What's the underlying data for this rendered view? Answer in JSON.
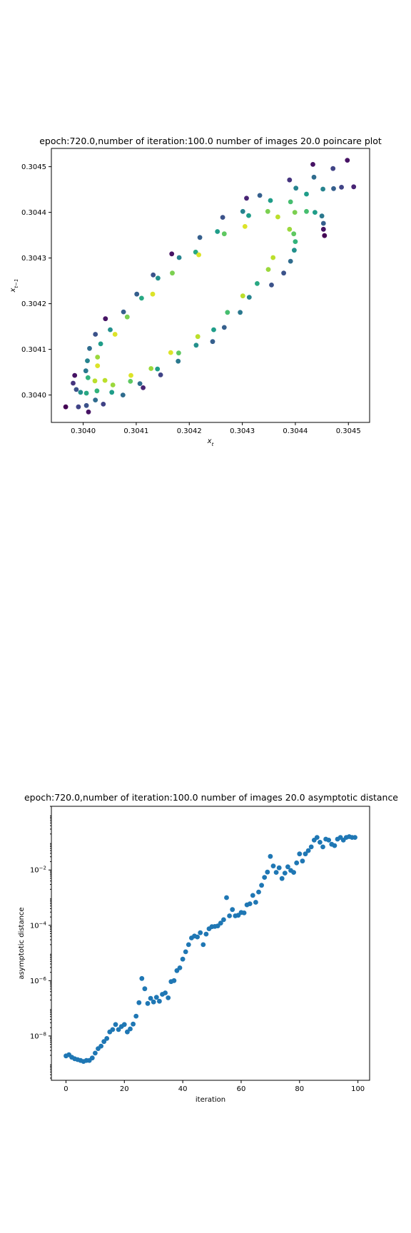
{
  "chart_data": [
    {
      "type": "scatter",
      "title": "epoch:720.0,number of iteration:100.0 number of images 20.0 poincare plot",
      "xlabel": "x_t",
      "ylabel": "x_{t-1}",
      "xlim": [
        0.30394,
        0.30454
      ],
      "ylim": [
        0.30394,
        0.30454
      ],
      "x_ticks": [
        0.304,
        0.3041,
        0.3042,
        0.3043,
        0.3044,
        0.3045
      ],
      "x_tick_labels": [
        "0.3040",
        "0.3041",
        "0.3042",
        "0.3043",
        "0.3044",
        "0.3045"
      ],
      "y_ticks": [
        0.304,
        0.3041,
        0.3042,
        0.3043,
        0.3044,
        0.3045
      ],
      "y_tick_labels": [
        "0.3040",
        "0.3041",
        "0.3042",
        "0.3043",
        "0.3044",
        "0.3045"
      ],
      "colormap": "viridis",
      "grid": false,
      "points": [
        {
          "x": 0.303967,
          "y": 0.303974,
          "c": 0.0
        },
        {
          "x": 0.303984,
          "y": 0.304043,
          "c": 0.05
        },
        {
          "x": 0.303981,
          "y": 0.304026,
          "c": 0.15
        },
        {
          "x": 0.303987,
          "y": 0.304012,
          "c": 0.25
        },
        {
          "x": 0.303991,
          "y": 0.303974,
          "c": 0.2
        },
        {
          "x": 0.303995,
          "y": 0.304006,
          "c": 0.5
        },
        {
          "x": 0.304006,
          "y": 0.303977,
          "c": 0.25
        },
        {
          "x": 0.30401,
          "y": 0.303963,
          "c": 0.05
        },
        {
          "x": 0.304005,
          "y": 0.304053,
          "c": 0.4
        },
        {
          "x": 0.304009,
          "y": 0.304038,
          "c": 0.65
        },
        {
          "x": 0.304008,
          "y": 0.304075,
          "c": 0.45
        },
        {
          "x": 0.304012,
          "y": 0.304102,
          "c": 0.35
        },
        {
          "x": 0.304006,
          "y": 0.304004,
          "c": 0.6
        },
        {
          "x": 0.304022,
          "y": 0.304031,
          "c": 0.9
        },
        {
          "x": 0.304023,
          "y": 0.303989,
          "c": 0.35
        },
        {
          "x": 0.304023,
          "y": 0.304133,
          "c": 0.25
        },
        {
          "x": 0.304026,
          "y": 0.304009,
          "c": 0.65
        },
        {
          "x": 0.304027,
          "y": 0.304083,
          "c": 0.85
        },
        {
          "x": 0.304027,
          "y": 0.304064,
          "c": 0.95
        },
        {
          "x": 0.304033,
          "y": 0.304112,
          "c": 0.55
        },
        {
          "x": 0.304041,
          "y": 0.304032,
          "c": 0.9
        },
        {
          "x": 0.304038,
          "y": 0.30398,
          "c": 0.2
        },
        {
          "x": 0.304042,
          "y": 0.304167,
          "c": 0.05
        },
        {
          "x": 0.304051,
          "y": 0.304143,
          "c": 0.5
        },
        {
          "x": 0.304054,
          "y": 0.304006,
          "c": 0.55
        },
        {
          "x": 0.304056,
          "y": 0.304022,
          "c": 0.85
        },
        {
          "x": 0.30406,
          "y": 0.304133,
          "c": 0.95
        },
        {
          "x": 0.304075,
          "y": 0.304,
          "c": 0.35
        },
        {
          "x": 0.304076,
          "y": 0.304182,
          "c": 0.3
        },
        {
          "x": 0.304083,
          "y": 0.304171,
          "c": 0.8
        },
        {
          "x": 0.304089,
          "y": 0.30403,
          "c": 0.75
        },
        {
          "x": 0.30409,
          "y": 0.304043,
          "c": 0.95
        },
        {
          "x": 0.304101,
          "y": 0.304221,
          "c": 0.3
        },
        {
          "x": 0.304107,
          "y": 0.304025,
          "c": 0.35
        },
        {
          "x": 0.30411,
          "y": 0.304212,
          "c": 0.6
        },
        {
          "x": 0.304113,
          "y": 0.304016,
          "c": 0.1
        },
        {
          "x": 0.304128,
          "y": 0.304058,
          "c": 0.85
        },
        {
          "x": 0.304131,
          "y": 0.304221,
          "c": 0.95
        },
        {
          "x": 0.304132,
          "y": 0.304263,
          "c": 0.25
        },
        {
          "x": 0.30414,
          "y": 0.304057,
          "c": 0.55
        },
        {
          "x": 0.304141,
          "y": 0.304256,
          "c": 0.5
        },
        {
          "x": 0.304146,
          "y": 0.304044,
          "c": 0.2
        },
        {
          "x": 0.304165,
          "y": 0.304093,
          "c": 0.95
        },
        {
          "x": 0.304167,
          "y": 0.304309,
          "c": 0.05
        },
        {
          "x": 0.304168,
          "y": 0.304267,
          "c": 0.8
        },
        {
          "x": 0.304179,
          "y": 0.304074,
          "c": 0.4
        },
        {
          "x": 0.30418,
          "y": 0.304092,
          "c": 0.75
        },
        {
          "x": 0.304181,
          "y": 0.304301,
          "c": 0.45
        },
        {
          "x": 0.304212,
          "y": 0.304313,
          "c": 0.6
        },
        {
          "x": 0.304213,
          "y": 0.304109,
          "c": 0.5
        },
        {
          "x": 0.304216,
          "y": 0.304128,
          "c": 0.9
        },
        {
          "x": 0.304218,
          "y": 0.304307,
          "c": 0.95
        },
        {
          "x": 0.30422,
          "y": 0.304345,
          "c": 0.3
        },
        {
          "x": 0.304244,
          "y": 0.304117,
          "c": 0.3
        },
        {
          "x": 0.304246,
          "y": 0.304143,
          "c": 0.55
        },
        {
          "x": 0.304253,
          "y": 0.304358,
          "c": 0.55
        },
        {
          "x": 0.304263,
          "y": 0.304389,
          "c": 0.25
        },
        {
          "x": 0.304266,
          "y": 0.304148,
          "c": 0.3
        },
        {
          "x": 0.304266,
          "y": 0.304353,
          "c": 0.75
        },
        {
          "x": 0.304272,
          "y": 0.304181,
          "c": 0.7
        },
        {
          "x": 0.304296,
          "y": 0.304181,
          "c": 0.4
        },
        {
          "x": 0.304301,
          "y": 0.304217,
          "c": 0.9
        },
        {
          "x": 0.304301,
          "y": 0.304402,
          "c": 0.45
        },
        {
          "x": 0.304305,
          "y": 0.304369,
          "c": 0.95
        },
        {
          "x": 0.304308,
          "y": 0.304431,
          "c": 0.1
        },
        {
          "x": 0.304312,
          "y": 0.304393,
          "c": 0.55
        },
        {
          "x": 0.304313,
          "y": 0.304214,
          "c": 0.45
        },
        {
          "x": 0.304328,
          "y": 0.304244,
          "c": 0.6
        },
        {
          "x": 0.304333,
          "y": 0.304437,
          "c": 0.3
        },
        {
          "x": 0.304348,
          "y": 0.304402,
          "c": 0.8
        },
        {
          "x": 0.304349,
          "y": 0.304275,
          "c": 0.85
        },
        {
          "x": 0.304353,
          "y": 0.304426,
          "c": 0.55
        },
        {
          "x": 0.304355,
          "y": 0.304241,
          "c": 0.25
        },
        {
          "x": 0.304358,
          "y": 0.304301,
          "c": 0.9
        },
        {
          "x": 0.304367,
          "y": 0.30439,
          "c": 0.9
        },
        {
          "x": 0.304378,
          "y": 0.304267,
          "c": 0.25
        },
        {
          "x": 0.304389,
          "y": 0.304363,
          "c": 0.85
        },
        {
          "x": 0.304389,
          "y": 0.304471,
          "c": 0.15
        },
        {
          "x": 0.304391,
          "y": 0.304293,
          "c": 0.35
        },
        {
          "x": 0.304391,
          "y": 0.304423,
          "c": 0.7
        },
        {
          "x": 0.304397,
          "y": 0.304353,
          "c": 0.75
        },
        {
          "x": 0.304398,
          "y": 0.304317,
          "c": 0.5
        },
        {
          "x": 0.304399,
          "y": 0.3044,
          "c": 0.8
        },
        {
          "x": 0.3044,
          "y": 0.304336,
          "c": 0.65
        },
        {
          "x": 0.304401,
          "y": 0.304453,
          "c": 0.45
        },
        {
          "x": 0.304421,
          "y": 0.304402,
          "c": 0.7
        },
        {
          "x": 0.304421,
          "y": 0.30444,
          "c": 0.55
        },
        {
          "x": 0.304433,
          "y": 0.304505,
          "c": 0.05
        },
        {
          "x": 0.304435,
          "y": 0.304477,
          "c": 0.35
        },
        {
          "x": 0.304437,
          "y": 0.3044,
          "c": 0.55
        },
        {
          "x": 0.30445,
          "y": 0.304392,
          "c": 0.4
        },
        {
          "x": 0.304453,
          "y": 0.304363,
          "c": 0.05
        },
        {
          "x": 0.304453,
          "y": 0.304376,
          "c": 0.3
        },
        {
          "x": 0.304452,
          "y": 0.304451,
          "c": 0.45
        },
        {
          "x": 0.304455,
          "y": 0.304349,
          "c": 0.0
        },
        {
          "x": 0.304471,
          "y": 0.304496,
          "c": 0.2
        },
        {
          "x": 0.304472,
          "y": 0.304452,
          "c": 0.3
        },
        {
          "x": 0.304487,
          "y": 0.304455,
          "c": 0.2
        },
        {
          "x": 0.304498,
          "y": 0.304514,
          "c": 0.05
        },
        {
          "x": 0.30451,
          "y": 0.304456,
          "c": 0.1
        }
      ]
    },
    {
      "type": "scatter",
      "title": "epoch:720.0,number of iteration:100.0  number of images 20.0 asymptotic distance",
      "xlabel": "iteration",
      "ylabel": "asymptotic distance",
      "yscale": "log",
      "xlim": [
        -5,
        104
      ],
      "ylim": [
        2.5e-10,
        2.0
      ],
      "x_ticks": [
        0,
        20,
        40,
        60,
        80,
        100
      ],
      "x_tick_labels": [
        "0",
        "20",
        "40",
        "60",
        "80",
        "100"
      ],
      "y_ticks": [
        1e-08,
        1e-06,
        0.0001,
        0.01
      ],
      "y_tick_labels": [
        "10",
        "10",
        "10",
        "10"
      ],
      "y_tick_exponents": [
        "−8",
        "−6",
        "−4",
        "−2"
      ],
      "color": "#1f77b4",
      "grid": false,
      "x": [
        0,
        1,
        2,
        3,
        4,
        5,
        6,
        7,
        8,
        9,
        10,
        11,
        12,
        13,
        14,
        15,
        16,
        17,
        18,
        19,
        20,
        21,
        22,
        23,
        24,
        25,
        26,
        27,
        28,
        29,
        30,
        31,
        32,
        33,
        34,
        35,
        36,
        37,
        38,
        39,
        40,
        41,
        42,
        43,
        44,
        45,
        46,
        47,
        48,
        49,
        50,
        51,
        52,
        53,
        54,
        55,
        56,
        57,
        58,
        59,
        60,
        61,
        62,
        63,
        64,
        65,
        66,
        67,
        68,
        69,
        70,
        71,
        72,
        73,
        74,
        75,
        76,
        77,
        78,
        79,
        80,
        81,
        82,
        83,
        84,
        85,
        86,
        87,
        88,
        89,
        90,
        91,
        92,
        93,
        94,
        95,
        96,
        97,
        98,
        99
      ],
      "y": [
        1.9e-09,
        2.1e-09,
        1.7e-09,
        1.5e-09,
        1.4e-09,
        1.3e-09,
        1.2e-09,
        1.3e-09,
        1.3e-09,
        1.6e-09,
        2.4e-09,
        3.5e-09,
        4.3e-09,
        6.3e-09,
        8.1e-09,
        1.4e-08,
        1.7e-08,
        2.6e-08,
        1.7e-08,
        2.2e-08,
        2.6e-08,
        1.4e-08,
        1.8e-08,
        2.7e-08,
        5.2e-08,
        1.6e-07,
        1.2e-06,
        5.1e-07,
        1.5e-07,
        2.3e-07,
        1.7e-07,
        2.5e-07,
        1.8e-07,
        3.2e-07,
        3.6e-07,
        2.4e-07,
        9.2e-07,
        1e-06,
        2.3e-06,
        2.9e-06,
        6e-06,
        1.1e-05,
        2e-05,
        3.5e-05,
        4.1e-05,
        3.8e-05,
        5.4e-05,
        2e-05,
        4.8e-05,
        7.5e-05,
        8.9e-05,
        9.1e-05,
        9.5e-05,
        0.00012,
        0.00016,
        0.001,
        0.00022,
        0.00037,
        0.00022,
        0.00023,
        0.00029,
        0.00028,
        0.00055,
        0.0006,
        0.0012,
        0.00068,
        0.0016,
        0.0028,
        0.0054,
        0.0084,
        0.031,
        0.014,
        0.0082,
        0.012,
        0.0049,
        0.0077,
        0.013,
        0.0096,
        0.0082,
        0.018,
        0.038,
        0.021,
        0.038,
        0.05,
        0.068,
        0.12,
        0.15,
        0.1,
        0.068,
        0.13,
        0.12,
        0.085,
        0.076,
        0.13,
        0.15,
        0.12,
        0.15,
        0.16,
        0.15,
        0.15
      ]
    }
  ]
}
